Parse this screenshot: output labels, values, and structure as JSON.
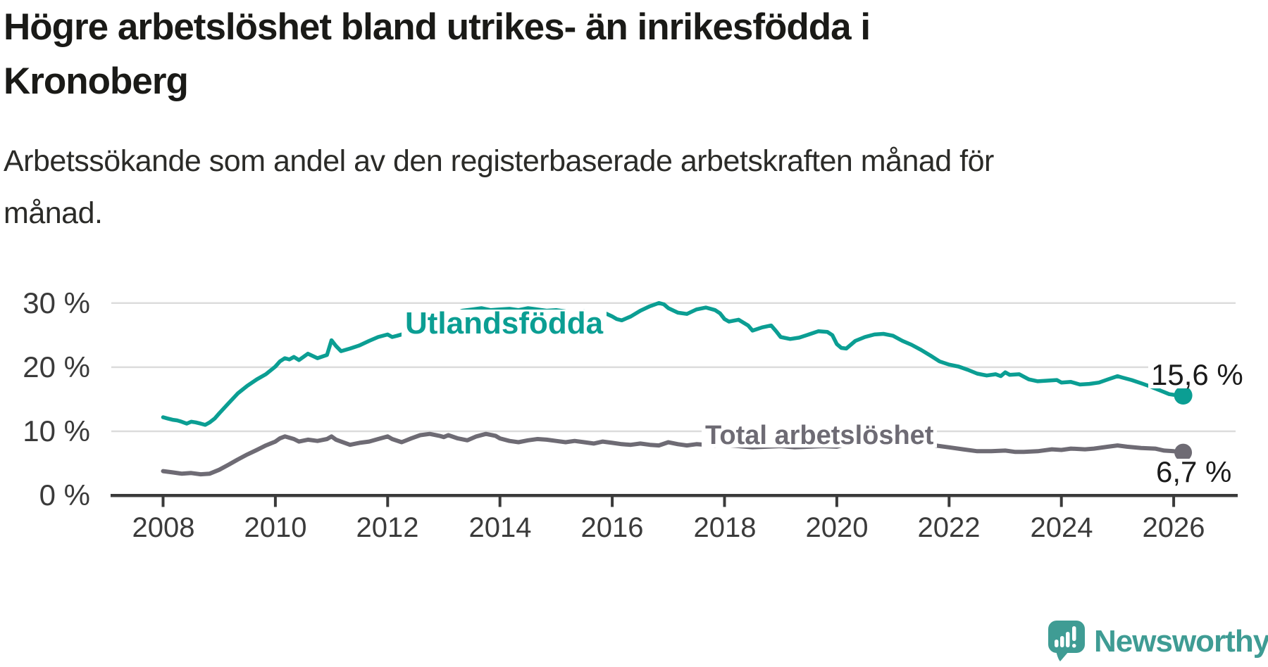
{
  "header": {
    "title": "Högre arbetslöshet bland utrikes- än inrikesfödda i Kronoberg",
    "subtitle": "Arbetssökande som andel av den registerbaserade arbetskraften månad för månad."
  },
  "annotations": {
    "series1_label": "Utlandsfödda",
    "series2_label": "Total arbetslöshet",
    "value1_label": "15,6 %",
    "value2_label": "6,7 %"
  },
  "branding": {
    "logo_text": "Newsworthy",
    "logo_color": "#3f9c94"
  },
  "chart_data": {
    "type": "line",
    "title": "Högre arbetslöshet bland utrikes- än inrikesfödda i Kronoberg",
    "xlabel": "",
    "ylabel": "Arbetssökande som andel av den registerbaserade arbetskraften",
    "grid": "horizontal",
    "legend_position": "inline-labels",
    "colors": {
      "gridline": "#dcdcdc",
      "axis": "#3a3a3a"
    },
    "x_axis": {
      "min": 2007.05,
      "max": 2027.1,
      "ticks": [
        {
          "value": 2008,
          "label": "2008"
        },
        {
          "value": 2010,
          "label": "2010"
        },
        {
          "value": 2012,
          "label": "2012"
        },
        {
          "value": 2014,
          "label": "2014"
        },
        {
          "value": 2016,
          "label": "2016"
        },
        {
          "value": 2018,
          "label": "2018"
        },
        {
          "value": 2020,
          "label": "2020"
        },
        {
          "value": 2022,
          "label": "2022"
        },
        {
          "value": 2024,
          "label": "2024"
        },
        {
          "value": 2026,
          "label": "2026"
        }
      ]
    },
    "y_axis": {
      "min": 0,
      "max": 32,
      "unit": "%",
      "gridlines": [
        10,
        20,
        30
      ],
      "ticks": [
        {
          "value": 0,
          "label": "0 %"
        },
        {
          "value": 10,
          "label": "10 %"
        },
        {
          "value": 20,
          "label": "20 %"
        },
        {
          "value": 30,
          "label": "30 %"
        }
      ]
    },
    "series": [
      {
        "name": "Total arbetslöshet",
        "color": "#6e6b74",
        "end_value_label": "6,7 %",
        "points": [
          [
            2008.0,
            3.8
          ],
          [
            2008.17,
            3.6
          ],
          [
            2008.33,
            3.4
          ],
          [
            2008.5,
            3.5
          ],
          [
            2008.67,
            3.3
          ],
          [
            2008.83,
            3.4
          ],
          [
            2009.0,
            4.0
          ],
          [
            2009.17,
            4.8
          ],
          [
            2009.33,
            5.6
          ],
          [
            2009.5,
            6.4
          ],
          [
            2009.67,
            7.1
          ],
          [
            2009.83,
            7.8
          ],
          [
            2010.0,
            8.4
          ],
          [
            2010.08,
            8.9
          ],
          [
            2010.17,
            9.2
          ],
          [
            2010.33,
            8.8
          ],
          [
            2010.42,
            8.4
          ],
          [
            2010.58,
            8.7
          ],
          [
            2010.75,
            8.5
          ],
          [
            2010.92,
            8.8
          ],
          [
            2011.0,
            9.2
          ],
          [
            2011.08,
            8.7
          ],
          [
            2011.17,
            8.4
          ],
          [
            2011.33,
            7.9
          ],
          [
            2011.5,
            8.2
          ],
          [
            2011.67,
            8.4
          ],
          [
            2011.83,
            8.8
          ],
          [
            2012.0,
            9.2
          ],
          [
            2012.08,
            8.8
          ],
          [
            2012.25,
            8.3
          ],
          [
            2012.42,
            8.9
          ],
          [
            2012.58,
            9.4
          ],
          [
            2012.75,
            9.6
          ],
          [
            2012.92,
            9.3
          ],
          [
            2013.0,
            9.1
          ],
          [
            2013.08,
            9.4
          ],
          [
            2013.25,
            8.9
          ],
          [
            2013.42,
            8.6
          ],
          [
            2013.58,
            9.2
          ],
          [
            2013.75,
            9.6
          ],
          [
            2013.92,
            9.3
          ],
          [
            2014.0,
            8.9
          ],
          [
            2014.17,
            8.5
          ],
          [
            2014.33,
            8.3
          ],
          [
            2014.5,
            8.6
          ],
          [
            2014.67,
            8.8
          ],
          [
            2014.83,
            8.7
          ],
          [
            2015.0,
            8.5
          ],
          [
            2015.17,
            8.3
          ],
          [
            2015.33,
            8.5
          ],
          [
            2015.5,
            8.3
          ],
          [
            2015.67,
            8.1
          ],
          [
            2015.83,
            8.4
          ],
          [
            2016.0,
            8.2
          ],
          [
            2016.17,
            8.0
          ],
          [
            2016.33,
            7.9
          ],
          [
            2016.5,
            8.1
          ],
          [
            2016.67,
            7.9
          ],
          [
            2016.83,
            7.8
          ],
          [
            2017.0,
            8.3
          ],
          [
            2017.17,
            8.0
          ],
          [
            2017.33,
            7.8
          ],
          [
            2017.5,
            8.0
          ],
          [
            2017.67,
            7.9
          ],
          [
            2017.83,
            7.8
          ],
          [
            2018.0,
            7.9
          ],
          [
            2018.25,
            7.7
          ],
          [
            2018.5,
            7.5
          ],
          [
            2018.75,
            7.6
          ],
          [
            2019.0,
            7.7
          ],
          [
            2019.25,
            7.5
          ],
          [
            2019.5,
            7.6
          ],
          [
            2019.75,
            7.7
          ],
          [
            2020.0,
            7.6
          ],
          [
            2020.17,
            8.0
          ],
          [
            2020.33,
            8.6
          ],
          [
            2020.5,
            8.9
          ],
          [
            2020.67,
            9.0
          ],
          [
            2020.83,
            8.9
          ],
          [
            2021.0,
            8.8
          ],
          [
            2021.25,
            8.5
          ],
          [
            2021.5,
            8.2
          ],
          [
            2021.75,
            7.8
          ],
          [
            2022.0,
            7.5
          ],
          [
            2022.25,
            7.2
          ],
          [
            2022.5,
            6.9
          ],
          [
            2022.75,
            6.9
          ],
          [
            2023.0,
            7.0
          ],
          [
            2023.17,
            6.8
          ],
          [
            2023.33,
            6.8
          ],
          [
            2023.58,
            6.9
          ],
          [
            2023.83,
            7.2
          ],
          [
            2024.0,
            7.1
          ],
          [
            2024.17,
            7.3
          ],
          [
            2024.42,
            7.2
          ],
          [
            2024.58,
            7.3
          ],
          [
            2024.83,
            7.6
          ],
          [
            2025.0,
            7.8
          ],
          [
            2025.17,
            7.6
          ],
          [
            2025.42,
            7.4
          ],
          [
            2025.67,
            7.3
          ],
          [
            2025.83,
            7.0
          ],
          [
            2026.0,
            6.9
          ],
          [
            2026.17,
            6.7
          ]
        ]
      },
      {
        "name": "Utlandsfödda",
        "color": "#0b9e93",
        "end_value_label": "15,6 %",
        "points": [
          [
            2008.0,
            12.2
          ],
          [
            2008.08,
            12.0
          ],
          [
            2008.17,
            11.8
          ],
          [
            2008.25,
            11.7
          ],
          [
            2008.33,
            11.5
          ],
          [
            2008.42,
            11.2
          ],
          [
            2008.5,
            11.5
          ],
          [
            2008.58,
            11.4
          ],
          [
            2008.67,
            11.2
          ],
          [
            2008.75,
            11.0
          ],
          [
            2008.83,
            11.4
          ],
          [
            2008.92,
            12.0
          ],
          [
            2009.0,
            12.8
          ],
          [
            2009.17,
            14.4
          ],
          [
            2009.33,
            15.9
          ],
          [
            2009.5,
            17.1
          ],
          [
            2009.67,
            18.1
          ],
          [
            2009.83,
            18.9
          ],
          [
            2010.0,
            20.1
          ],
          [
            2010.08,
            20.9
          ],
          [
            2010.17,
            21.4
          ],
          [
            2010.25,
            21.2
          ],
          [
            2010.33,
            21.6
          ],
          [
            2010.42,
            21.1
          ],
          [
            2010.58,
            22.1
          ],
          [
            2010.75,
            21.4
          ],
          [
            2010.92,
            21.9
          ],
          [
            2011.0,
            24.2
          ],
          [
            2011.08,
            23.3
          ],
          [
            2011.17,
            22.5
          ],
          [
            2011.33,
            22.9
          ],
          [
            2011.5,
            23.4
          ],
          [
            2011.67,
            24.1
          ],
          [
            2011.83,
            24.7
          ],
          [
            2012.0,
            25.1
          ],
          [
            2012.08,
            24.7
          ],
          [
            2012.17,
            24.9
          ],
          [
            2012.33,
            25.3
          ],
          [
            2012.5,
            25.9
          ],
          [
            2012.67,
            26.4
          ],
          [
            2012.83,
            27.1
          ],
          [
            2013.0,
            27.7
          ],
          [
            2013.17,
            28.3
          ],
          [
            2013.33,
            28.8
          ],
          [
            2013.5,
            29.0
          ],
          [
            2013.67,
            29.2
          ],
          [
            2013.83,
            28.9
          ],
          [
            2014.0,
            29.0
          ],
          [
            2014.17,
            29.1
          ],
          [
            2014.33,
            28.9
          ],
          [
            2014.5,
            29.2
          ],
          [
            2014.67,
            29.0
          ],
          [
            2014.83,
            28.8
          ],
          [
            2015.0,
            28.9
          ],
          [
            2015.17,
            28.7
          ],
          [
            2015.33,
            28.6
          ],
          [
            2015.5,
            28.7
          ],
          [
            2015.67,
            28.5
          ],
          [
            2015.83,
            28.6
          ],
          [
            2016.0,
            27.9
          ],
          [
            2016.08,
            27.5
          ],
          [
            2016.17,
            27.3
          ],
          [
            2016.33,
            27.9
          ],
          [
            2016.5,
            28.8
          ],
          [
            2016.67,
            29.5
          ],
          [
            2016.83,
            30.0
          ],
          [
            2016.92,
            29.8
          ],
          [
            2017.0,
            29.2
          ],
          [
            2017.17,
            28.5
          ],
          [
            2017.33,
            28.3
          ],
          [
            2017.5,
            29.0
          ],
          [
            2017.67,
            29.3
          ],
          [
            2017.83,
            28.9
          ],
          [
            2017.92,
            28.4
          ],
          [
            2018.0,
            27.5
          ],
          [
            2018.08,
            27.1
          ],
          [
            2018.25,
            27.4
          ],
          [
            2018.42,
            26.5
          ],
          [
            2018.5,
            25.7
          ],
          [
            2018.67,
            26.2
          ],
          [
            2018.83,
            26.5
          ],
          [
            2018.92,
            25.6
          ],
          [
            2019.0,
            24.7
          ],
          [
            2019.17,
            24.4
          ],
          [
            2019.33,
            24.6
          ],
          [
            2019.5,
            25.1
          ],
          [
            2019.67,
            25.6
          ],
          [
            2019.83,
            25.5
          ],
          [
            2019.92,
            25.0
          ],
          [
            2020.0,
            23.6
          ],
          [
            2020.08,
            23.0
          ],
          [
            2020.17,
            22.9
          ],
          [
            2020.33,
            24.1
          ],
          [
            2020.5,
            24.7
          ],
          [
            2020.67,
            25.1
          ],
          [
            2020.83,
            25.2
          ],
          [
            2021.0,
            24.9
          ],
          [
            2021.17,
            24.1
          ],
          [
            2021.33,
            23.5
          ],
          [
            2021.5,
            22.7
          ],
          [
            2021.67,
            21.8
          ],
          [
            2021.83,
            20.9
          ],
          [
            2022.0,
            20.4
          ],
          [
            2022.17,
            20.1
          ],
          [
            2022.33,
            19.6
          ],
          [
            2022.5,
            19.0
          ],
          [
            2022.67,
            18.7
          ],
          [
            2022.83,
            18.9
          ],
          [
            2022.92,
            18.6
          ],
          [
            2023.0,
            19.2
          ],
          [
            2023.08,
            18.8
          ],
          [
            2023.25,
            18.9
          ],
          [
            2023.42,
            18.1
          ],
          [
            2023.58,
            17.8
          ],
          [
            2023.75,
            17.9
          ],
          [
            2023.92,
            18.0
          ],
          [
            2024.0,
            17.6
          ],
          [
            2024.17,
            17.7
          ],
          [
            2024.33,
            17.3
          ],
          [
            2024.5,
            17.4
          ],
          [
            2024.67,
            17.6
          ],
          [
            2024.83,
            18.1
          ],
          [
            2025.0,
            18.6
          ],
          [
            2025.08,
            18.4
          ],
          [
            2025.25,
            18.0
          ],
          [
            2025.42,
            17.5
          ],
          [
            2025.58,
            17.0
          ],
          [
            2025.75,
            16.4
          ],
          [
            2025.92,
            15.8
          ],
          [
            2026.0,
            15.7
          ],
          [
            2026.17,
            15.6
          ]
        ]
      }
    ]
  }
}
